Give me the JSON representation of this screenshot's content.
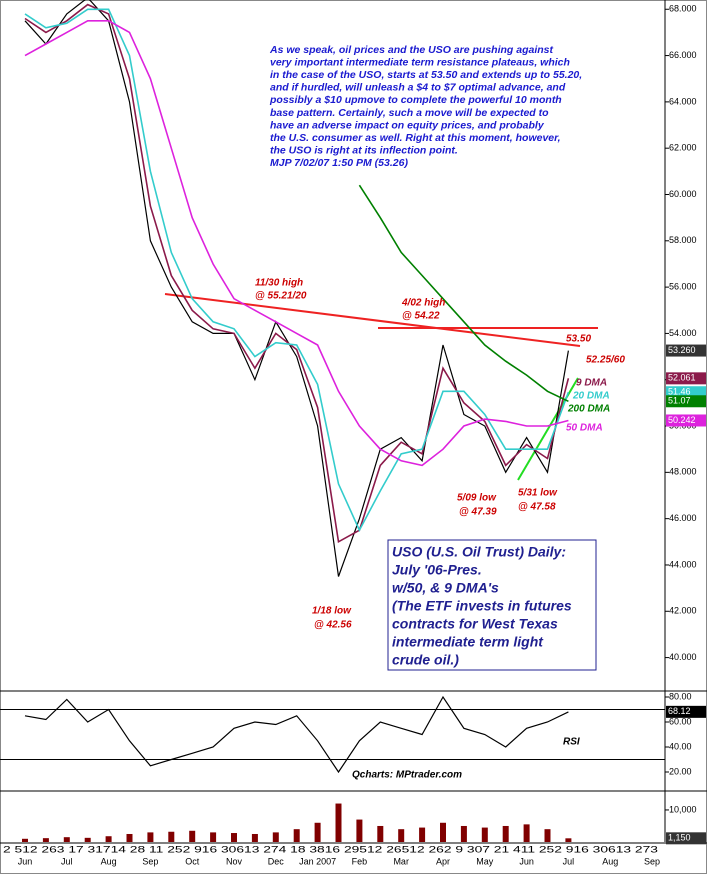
{
  "chart_data": [
    {
      "type": "line",
      "categories": [
        "Jun",
        null,
        "Jul",
        null,
        "Aug",
        null,
        "Sep",
        null,
        "Oct",
        null,
        "Nov",
        null,
        "Dec",
        null,
        "Jan 2007",
        null,
        "Feb",
        null,
        "Mar",
        null,
        "Apr",
        null,
        "May",
        null,
        "Jun",
        null,
        "Jul",
        null,
        "Aug",
        null,
        "Sep"
      ],
      "day_labels": "2 512 263 17 31714 28 11 252 916 30613 274 18 3816 29512 26512 262 9 307 21 411 252 916 30613 273",
      "ylim": [
        38.6,
        68.4
      ],
      "yticks": [
        {
          "value": 40,
          "label": "40.000"
        },
        {
          "value": 42,
          "label": "42.000"
        },
        {
          "value": 44,
          "label": "44.000"
        },
        {
          "value": 46,
          "label": "46.000"
        },
        {
          "value": 48,
          "label": "48.000"
        },
        {
          "value": 50,
          "label": "50.000"
        },
        {
          "value": 52,
          "label": "52.000"
        },
        {
          "value": 54,
          "label": "54.000"
        },
        {
          "value": 56,
          "label": "56.000"
        },
        {
          "value": 58,
          "label": "58.000"
        },
        {
          "value": 60,
          "label": "60.000"
        },
        {
          "value": 62,
          "label": "62.000"
        },
        {
          "value": 64,
          "label": "64.000"
        },
        {
          "value": 66,
          "label": "66.000"
        },
        {
          "value": 68,
          "label": "68.000"
        }
      ],
      "series": [
        {
          "name": "USO",
          "color": "#000000",
          "end_label": "53.260",
          "values": [
            67.5,
            66.5,
            67.8,
            68.5,
            67.5,
            64,
            58,
            56,
            54.5,
            54,
            54,
            52,
            54.5,
            53,
            50,
            43.5,
            46,
            49,
            49.5,
            48.5,
            53.5,
            50.5,
            50,
            48,
            49.5,
            48,
            53.26,
            null,
            null,
            null,
            null
          ]
        },
        {
          "name": "9 DMA",
          "color": "#8b1a4a",
          "end_label": "52.061",
          "values": [
            67.6,
            67,
            67.5,
            68.2,
            67.8,
            65,
            59.5,
            56.5,
            55,
            54.2,
            54,
            52.5,
            54,
            53.3,
            50.8,
            45,
            45.5,
            48.3,
            49.3,
            48.8,
            52.5,
            51,
            50.2,
            48.3,
            49.2,
            48.6,
            52.06,
            null,
            null,
            null,
            null
          ]
        },
        {
          "name": "20 DMA",
          "color": "#33cccc",
          "end_label": "51.46",
          "values": [
            67.8,
            67.2,
            67.4,
            68,
            68,
            66,
            61,
            57.5,
            55.5,
            54.5,
            54.2,
            53,
            53.6,
            53.5,
            51.8,
            47.5,
            45.5,
            47.2,
            48.8,
            49,
            51.5,
            51.5,
            50.5,
            49,
            49,
            49,
            51.46,
            null,
            null,
            null,
            null
          ]
        },
        {
          "name": "200 DMA",
          "color": "#008000",
          "end_label": "51.07",
          "values": [
            null,
            null,
            null,
            null,
            null,
            null,
            null,
            null,
            null,
            null,
            null,
            null,
            null,
            null,
            null,
            null,
            60.4,
            59,
            57.5,
            56.5,
            55.5,
            54.5,
            53.5,
            52.8,
            52.2,
            51.5,
            51.07,
            null,
            null,
            null,
            null
          ]
        },
        {
          "name": "50 DMA",
          "color": "#dd22dd",
          "end_label": "50.242",
          "values": [
            66,
            66.5,
            67,
            67.5,
            67.5,
            67,
            65,
            62,
            59,
            57,
            55.5,
            55,
            54.5,
            54,
            53.5,
            51.5,
            50,
            49,
            48.5,
            48.3,
            49,
            50,
            50.3,
            50.2,
            50,
            50,
            50.24,
            null,
            null,
            null,
            null
          ]
        }
      ],
      "annotations": [
        "11/30 high",
        "@ 55.21/20",
        "4/02 high",
        "@ 54.22",
        "53.50",
        "52.25/60",
        "5/09 low",
        "@ 47.39",
        "5/31 low",
        "@ 47.58",
        "1/18 low",
        "@ 42.56"
      ],
      "commentary": [
        "As we speak, oil prices and the USO are pushing against",
        "very important intermediate term resistance plateaus, which",
        "in the case of the USO, starts at 53.50 and extends up to 55.20,",
        "and if hurdled, will unleash a $4 to $7 optimal advance, and",
        "possibly a $10 upmove to complete the powerful 10 month",
        "base pattern. Certainly, such a move will be expected to",
        "have an adverse impact on equity prices, and probably",
        "the U.S. consumer as well. Right at this moment, however,",
        "the USO is right at its inflection point.",
        "MJP 7/02/07 1:50 PM  (53.26)"
      ],
      "info_box": [
        "USO (U.S. Oil Trust) Daily:",
        "July '06-Pres.",
        "w/50, & 9 DMA's",
        "(The ETF invests in futures",
        "contracts for West Texas",
        "intermediate term light",
        "crude oil.)"
      ]
    },
    {
      "type": "line",
      "name": "RSI",
      "credit": "Qcharts: MPtrader.com",
      "ylim": [
        5.6,
        84
      ],
      "yticks": [
        {
          "value": 20,
          "label": "20.00"
        },
        {
          "value": 40,
          "label": "40.00"
        },
        {
          "value": 60,
          "label": "60.00"
        },
        {
          "value": 80,
          "label": "80.00"
        }
      ],
      "bands": [
        30,
        70
      ],
      "series": [
        {
          "name": "RSI",
          "color": "#000000",
          "end_label": "68.12",
          "values": [
            65,
            62,
            78,
            60,
            70,
            45,
            25,
            30,
            35,
            40,
            55,
            60,
            58,
            65,
            45,
            20,
            45,
            60,
            55,
            50,
            80,
            55,
            50,
            40,
            55,
            60,
            68.12,
            null,
            null,
            null,
            null
          ]
        }
      ]
    },
    {
      "type": "bar",
      "color": "#800000",
      "ylim": [
        0,
        15600
      ],
      "yticks": [
        {
          "value": 10000,
          "label": "10,000"
        }
      ],
      "end_label": "1,150",
      "values": [
        1000,
        1200,
        1500,
        1300,
        1800,
        2500,
        3000,
        3200,
        3500,
        3000,
        2800,
        2500,
        3000,
        4000,
        6000,
        12000,
        7000,
        5000,
        4000,
        4500,
        6000,
        5000,
        4500,
        5000,
        5500,
        4000,
        1150,
        null,
        null,
        null,
        null
      ]
    }
  ]
}
